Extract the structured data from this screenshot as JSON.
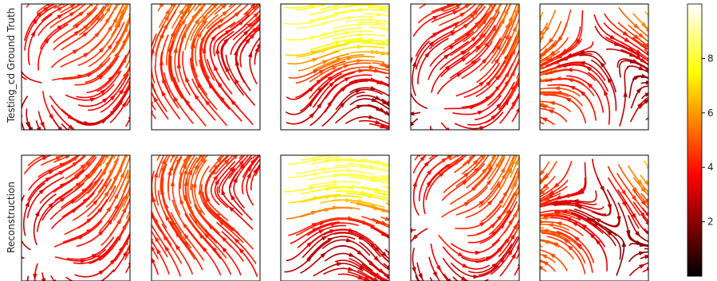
{
  "chart_data": {
    "type": "streamplot",
    "rows": [
      {
        "label": "Testing_cd Ground Truth"
      },
      {
        "label": "Reconstruction"
      }
    ],
    "panels_per_row": 5,
    "ticks": "off",
    "colorbar": {
      "colormap": "hot",
      "range": [
        0,
        10
      ],
      "ticks": [
        2,
        4,
        6,
        8
      ],
      "tick_labels": [
        "2",
        "4",
        "6",
        "8"
      ],
      "placement": "right"
    },
    "panels": [
      {
        "row": 0,
        "col": 0,
        "flow": "source-left",
        "seed": 11
      },
      {
        "row": 0,
        "col": 1,
        "flow": "vortex-center",
        "seed": 23
      },
      {
        "row": 0,
        "col": 2,
        "flow": "diagonal-shear",
        "seed": 37
      },
      {
        "row": 0,
        "col": 3,
        "flow": "source-left",
        "seed": 41
      },
      {
        "row": 0,
        "col": 4,
        "flow": "saddle-top",
        "seed": 53
      },
      {
        "row": 1,
        "col": 0,
        "flow": "source-left",
        "seed": 61
      },
      {
        "row": 1,
        "col": 1,
        "flow": "vortex-center",
        "seed": 71
      },
      {
        "row": 1,
        "col": 2,
        "flow": "diagonal-shear",
        "seed": 83
      },
      {
        "row": 1,
        "col": 3,
        "flow": "source-left",
        "seed": 97
      },
      {
        "row": 1,
        "col": 4,
        "flow": "saddle-top",
        "seed": 101
      }
    ]
  }
}
